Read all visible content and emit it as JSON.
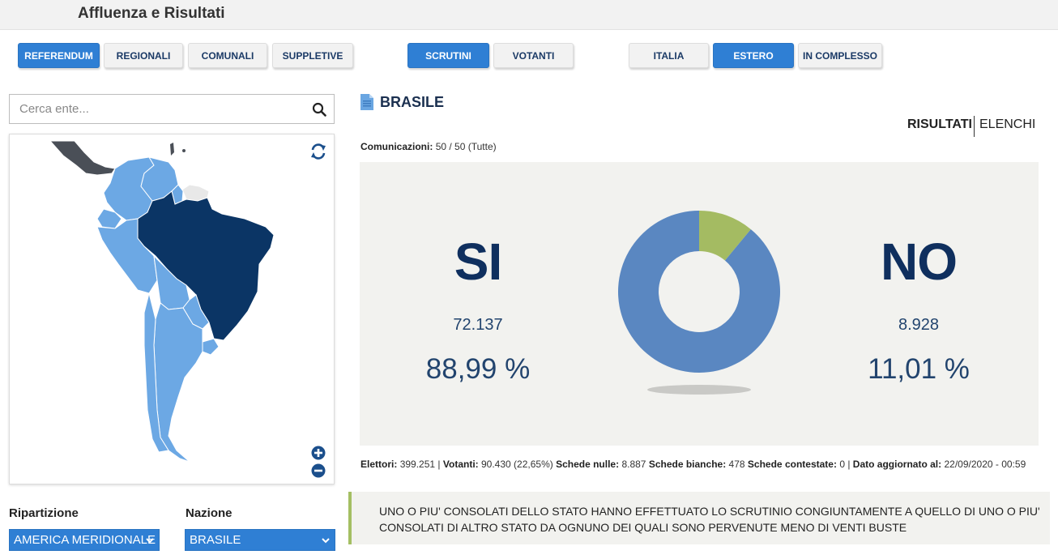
{
  "header": {
    "title": "Affluenza e Risultati"
  },
  "nav": {
    "tipo": [
      "REFERENDUM",
      "REGIONALI",
      "COMUNALI",
      "SUPPLETIVE"
    ],
    "dato": [
      "SCRUTINI",
      "VOTANTI"
    ],
    "ambito": [
      "ITALIA",
      "ESTERO",
      "IN COMPLESSO"
    ]
  },
  "search": {
    "placeholder": "Cerca ente..."
  },
  "filters": {
    "ripartizione_label": "Ripartizione",
    "ripartizione_value": "AMERICA MERIDIONALE",
    "nazione_label": "Nazione",
    "nazione_value": "BRASILE"
  },
  "result": {
    "place": "BRASILE",
    "tab_results": "RISULTATI",
    "tab_lists": "ELENCHI",
    "communications_label": "Comunicazioni:",
    "communications_value": "50 / 50 (Tutte)",
    "si": {
      "label": "SI",
      "votes": "72.137",
      "percent": "88,99 %"
    },
    "no": {
      "label": "NO",
      "votes": "8.928",
      "percent": "11,01 %"
    },
    "donut": {
      "si_share": 88.99,
      "no_share": 11.01,
      "si_color": "#5a87c1",
      "no_color": "#a4bb62"
    }
  },
  "stats": {
    "elettori_label": "Elettori:",
    "elettori_value": "399.251",
    "votanti_label": "Votanti:",
    "votanti_value": "90.430 (22,65%)",
    "nulle_label": "Schede nulle:",
    "nulle_value": "8.887",
    "bianche_label": "Schede bianche:",
    "bianche_value": "478",
    "contestate_label": "Schede contestate:",
    "contestate_value": "0",
    "aggiornato_label": "Dato aggiornato al:",
    "aggiornato_value": "22/09/2020 - 00:59"
  },
  "note": "UNO O PIU' CONSOLATI DELLO STATO HANNO EFFETTUATO LO SCRUTINIO CONGIUNTAMENTE A QUELLO DI UNO O PIU' CONSOLATI DI ALTRO STATO DA OGNUNO DEI QUALI SONO PERVENUTE MENO DI VENTI BUSTE",
  "colors": {
    "accent": "#2f7fd4",
    "map_selected": "#0b3565",
    "map_region": "#6ca8e4",
    "map_other": "#4a4f57",
    "note_bar": "#a4bf63"
  }
}
